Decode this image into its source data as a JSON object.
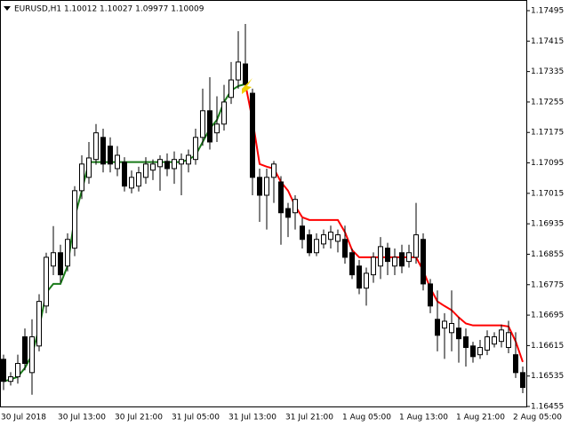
{
  "chart_data": {
    "type": "candlestick",
    "title": "EURUSD,H1  1.10012 1.10027 1.09977 1.10009",
    "categories": [
      "30 Jul 2018",
      null,
      null,
      null,
      null,
      null,
      null,
      null,
      "30 Jul 13:00",
      null,
      null,
      null,
      null,
      null,
      null,
      null,
      "30 Jul 21:00",
      null,
      null,
      null,
      null,
      null,
      null,
      null,
      "31 Jul 05:00",
      null,
      null,
      null,
      null,
      null,
      null,
      null,
      "31 Jul 13:00",
      null,
      null,
      null,
      null,
      null,
      null,
      null,
      "31 Jul 21:00",
      null,
      null,
      null,
      null,
      null,
      null,
      null,
      "1 Aug 05:00",
      null,
      null,
      null,
      null,
      null,
      null,
      null,
      "1 Aug 13:00",
      null,
      null,
      null,
      null,
      null,
      null,
      null,
      "1 Aug 21:00",
      null,
      null,
      null,
      null,
      null,
      null,
      null,
      "2 Aug 05:00",
      null
    ],
    "open": [
      1.16579,
      1.16521,
      1.16533,
      1.16638,
      1.16544,
      1.16614,
      1.16719,
      1.16824,
      1.16859,
      1.16824,
      1.16871,
      1.17022,
      1.17057,
      1.17104,
      1.17162,
      1.17139,
      1.1708,
      1.17097,
      1.17029,
      1.17034,
      1.17057,
      1.17076,
      1.17085,
      1.17099,
      1.1708,
      1.17092,
      1.17092,
      1.17104,
      1.17162,
      1.17232,
      1.17174,
      1.17197,
      1.17267,
      1.17313,
      1.17355,
      1.17278,
      1.17057,
      1.1701,
      1.17057,
      1.17045,
      1.16975,
      1.16964,
      1.16929,
      1.16906,
      1.16859,
      1.16882,
      1.16894,
      1.16889,
      1.16894,
      1.16859,
      1.16824,
      1.16766,
      1.16801,
      1.16824,
      1.16871,
      1.16824,
      1.16859,
      1.16836,
      1.16847,
      1.16894,
      1.16777,
      1.16684,
      1.16661,
      1.16649,
      1.16661,
      1.16638,
      1.16614,
      1.16591,
      1.16603,
      1.16619,
      1.16626,
      1.1661,
      1.16591,
      1.16544
    ],
    "high": [
      1.16591,
      1.16545,
      1.16591,
      1.1666,
      1.16684,
      1.1675,
      1.16859,
      1.16929,
      1.1688,
      1.1691,
      1.17034,
      1.17115,
      1.1715,
      1.17197,
      1.17185,
      1.17162,
      1.17139,
      1.1711,
      1.17075,
      1.17085,
      1.1711,
      1.17104,
      1.17115,
      1.1712,
      1.17125,
      1.1712,
      1.1713,
      1.17185,
      1.1729,
      1.1732,
      1.1727,
      1.173,
      1.1736,
      1.17441,
      1.1746,
      1.1729,
      1.1708,
      1.1708,
      1.171,
      1.1706,
      1.1699,
      1.1701,
      1.1695,
      1.1692,
      1.1691,
      1.1692,
      1.1693,
      1.1692,
      1.1693,
      1.1687,
      1.1684,
      1.1682,
      1.1686,
      1.169,
      1.16885,
      1.1687,
      1.1688,
      1.1688,
      1.1699,
      1.1691,
      1.1679,
      1.1676,
      1.167,
      1.1676,
      1.1669,
      1.1666,
      1.16625,
      1.1663,
      1.16655,
      1.1665,
      1.1667,
      1.1668,
      1.1665,
      1.1656
    ],
    "low": [
      1.16498,
      1.1651,
      1.16515,
      1.1655,
      1.16486,
      1.166,
      1.167,
      1.168,
      1.1678,
      1.1681,
      1.1685,
      1.17,
      1.1704,
      1.1709,
      1.1707,
      1.1707,
      1.1706,
      1.1702,
      1.17015,
      1.1702,
      1.1704,
      1.1705,
      1.17022,
      1.1706,
      1.1704,
      1.1701,
      1.1707,
      1.1709,
      1.1714,
      1.1713,
      1.1715,
      1.1718,
      1.1725,
      1.1729,
      1.17285,
      1.1701,
      1.1694,
      1.1692,
      1.1699,
      1.1688,
      1.169,
      1.1692,
      1.1687,
      1.1685,
      1.1685,
      1.1687,
      1.1687,
      1.1686,
      1.1683,
      1.1679,
      1.1675,
      1.1672,
      1.1678,
      1.1679,
      1.168,
      1.168,
      1.16805,
      1.1682,
      1.1683,
      1.1676,
      1.167,
      1.166,
      1.1658,
      1.166,
      1.1657,
      1.1656,
      1.1657,
      1.1658,
      1.1659,
      1.1661,
      1.1661,
      1.16595,
      1.1653,
      1.1649
    ],
    "close": [
      1.16521,
      1.16533,
      1.16568,
      1.16568,
      1.16638,
      1.16731,
      1.16847,
      1.16859,
      1.16801,
      1.16894,
      1.17022,
      1.17092,
      1.17108,
      1.17174,
      1.17092,
      1.17092,
      1.17115,
      1.17034,
      1.17057,
      1.17069,
      1.17092,
      1.17092,
      1.17104,
      1.1708,
      1.17104,
      1.17104,
      1.17115,
      1.17162,
      1.17232,
      1.1715,
      1.17197,
      1.17255,
      1.17313,
      1.1736,
      1.17302,
      1.17057,
      1.1701,
      1.17057,
      1.17092,
      1.16964,
      1.16952,
      1.16999,
      1.16894,
      1.16859,
      1.16894,
      1.16906,
      1.16913,
      1.16906,
      1.16847,
      1.16801,
      1.16766,
      1.16805,
      1.16847,
      1.16875,
      1.16836,
      1.16847,
      1.16824,
      1.16859,
      1.16906,
      1.16777,
      1.16719,
      1.16642,
      1.16679,
      1.16673,
      1.16633,
      1.1661,
      1.16586,
      1.1661,
      1.16638,
      1.16638,
      1.16656,
      1.16649,
      1.16544,
      1.16505
    ],
    "lines": [
      {
        "color": "#1a7a1a",
        "values": [
          1.16521,
          1.16526,
          1.16533,
          1.16556,
          1.16591,
          1.16661,
          1.16754,
          1.16777,
          1.16777,
          1.16824,
          1.16952,
          1.17022,
          1.17097,
          1.17097,
          1.17097,
          1.17097,
          1.17097,
          1.17097,
          1.17097,
          1.17097,
          1.17097,
          1.17097,
          1.17097,
          1.17097,
          1.17097,
          1.17097,
          1.17104,
          1.17115,
          1.1715,
          1.17185,
          1.17208,
          1.17255,
          1.17285,
          1.17297,
          1.17302,
          null,
          null,
          null,
          null,
          null,
          null,
          null,
          null,
          null,
          null,
          null,
          null,
          null,
          null,
          null,
          null,
          null,
          null,
          null,
          null,
          null,
          null,
          null,
          null,
          null,
          null,
          null,
          null,
          null,
          null,
          null,
          null,
          null,
          null,
          null,
          null,
          null,
          null,
          null
        ]
      },
      {
        "color": "#ff0000",
        "values": [
          null,
          null,
          null,
          null,
          null,
          null,
          null,
          null,
          null,
          null,
          null,
          null,
          null,
          null,
          null,
          null,
          null,
          null,
          null,
          null,
          null,
          null,
          null,
          null,
          null,
          null,
          null,
          null,
          null,
          null,
          null,
          null,
          null,
          null,
          1.17302,
          1.17208,
          1.17092,
          1.17085,
          1.1708,
          1.17045,
          1.17022,
          1.16982,
          1.16952,
          1.16945,
          1.16945,
          1.16945,
          1.16945,
          1.16945,
          1.16913,
          1.16866,
          1.16847,
          1.16847,
          1.16847,
          1.16847,
          1.16847,
          1.16847,
          1.16847,
          1.16847,
          1.16847,
          1.16812,
          1.16766,
          1.16731,
          1.16719,
          1.16708,
          1.16689,
          1.16673,
          1.16668,
          1.16668,
          1.16668,
          1.16668,
          1.16668,
          1.16665,
          1.16626,
          1.16572
        ]
      }
    ],
    "ylim": [
      1.16455,
      1.17523
    ],
    "yticks": [
      1.17495,
      1.17415,
      1.17335,
      1.17255,
      1.17175,
      1.17095,
      1.17015,
      1.16935,
      1.16855,
      1.16775,
      1.16695,
      1.16615,
      1.16535,
      1.16455
    ]
  }
}
